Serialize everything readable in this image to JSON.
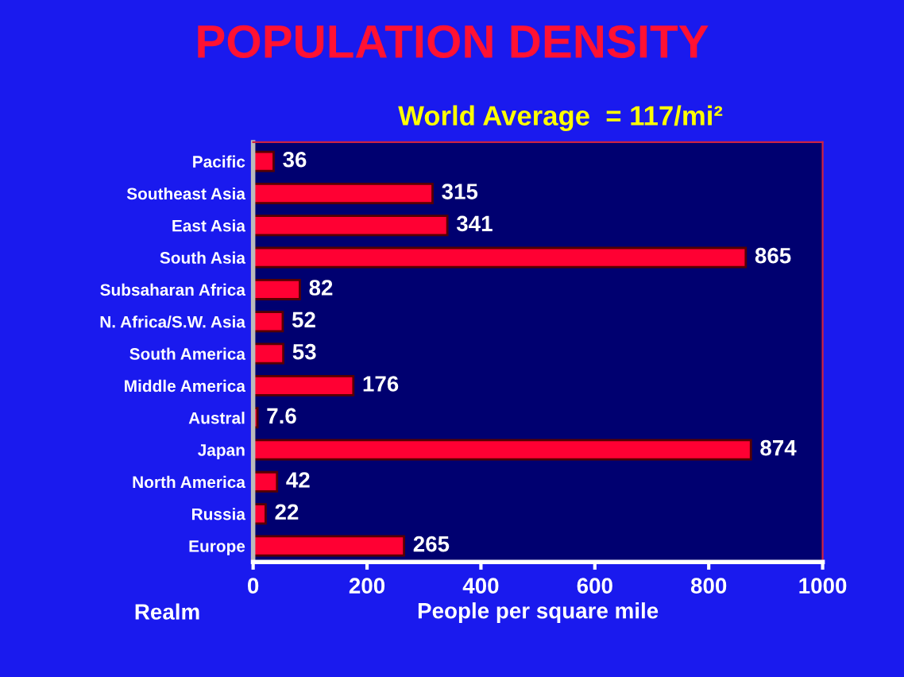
{
  "chart_data": {
    "type": "bar",
    "orientation": "horizontal",
    "title": "POPULATION DENSITY",
    "subtitle": "World Average  = 117/mi²",
    "xlabel": "People per square mile",
    "ylabel": "Realm",
    "categories": [
      "Pacific",
      "Southeast Asia",
      "East Asia",
      "South Asia",
      "Subsaharan Africa",
      "N. Africa/S.W. Asia",
      "South America",
      "Middle America",
      "Austral",
      "Japan",
      "North America",
      "Russia",
      "Europe"
    ],
    "values": [
      36,
      315,
      341,
      865,
      82,
      52,
      53,
      176,
      7.6,
      874,
      42,
      22,
      265
    ],
    "color": "#ff0033",
    "data_labels": true,
    "xlim": [
      0,
      1000
    ],
    "xticks": [
      0,
      200,
      400,
      600,
      800,
      1000
    ],
    "grid": false
  }
}
